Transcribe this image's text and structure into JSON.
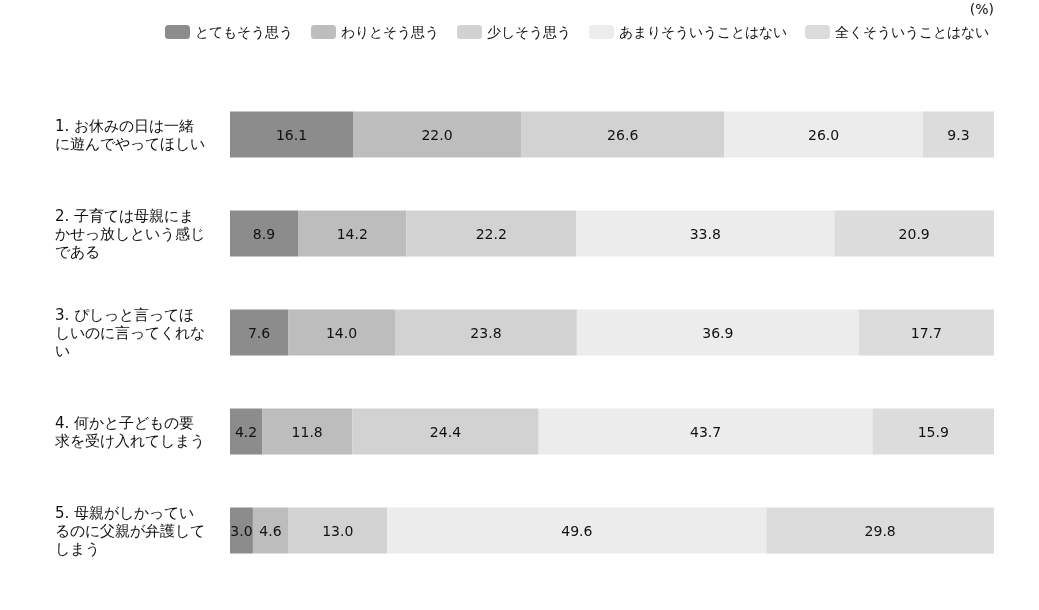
{
  "chart_data": {
    "type": "bar",
    "orientation": "horizontal",
    "stacked": true,
    "legend": "top",
    "grid": false,
    "tick_labels": "y",
    "annotations": [
      "(%)"
    ],
    "categories": [
      "1. お休みの日は一緒に遊んでやってほしい",
      "2. 子育ては母親にまかせっ放しという感じである",
      "3. ぴしっと言ってほしいのに言ってくれない",
      "4. 何かと子どもの要求を受け入れてしまう",
      "5. 母親がしかっているのに父親が弁護してしまう"
    ],
    "series": [
      {
        "name": "とてもそう思う",
        "color": "#8c8c8c",
        "values": [
          16.1,
          8.9,
          7.6,
          4.2,
          3.0
        ],
        "value_labels": [
          "16.1",
          "8.9",
          "7.6",
          "4.2",
          "3.0"
        ]
      },
      {
        "name": "わりとそう思う",
        "color": "#bdbdbd",
        "values": [
          22.0,
          14.2,
          14.0,
          11.8,
          4.6
        ],
        "value_labels": [
          "22.0",
          "14.2",
          "14.0",
          "11.8",
          "4.6"
        ]
      },
      {
        "name": "少しそう思う",
        "color": "#d2d2d2",
        "values": [
          26.6,
          22.2,
          23.8,
          24.4,
          13.0
        ],
        "value_labels": [
          "26.6",
          "22.2",
          "23.8",
          "24.4",
          "13.0"
        ]
      },
      {
        "name": "あまりそういうことはない",
        "color": "#ececec",
        "values": [
          26.0,
          33.8,
          36.9,
          43.7,
          49.6
        ],
        "value_labels": [
          "26.0",
          "33.8",
          "36.9",
          "43.7",
          "49.6"
        ]
      },
      {
        "name": "全くそういうことはない",
        "color": "#dcdcdc",
        "values": [
          9.3,
          20.9,
          17.7,
          15.9,
          29.8
        ],
        "value_labels": [
          "9.3",
          "20.9",
          "17.7",
          "15.9",
          "29.8"
        ]
      }
    ]
  }
}
